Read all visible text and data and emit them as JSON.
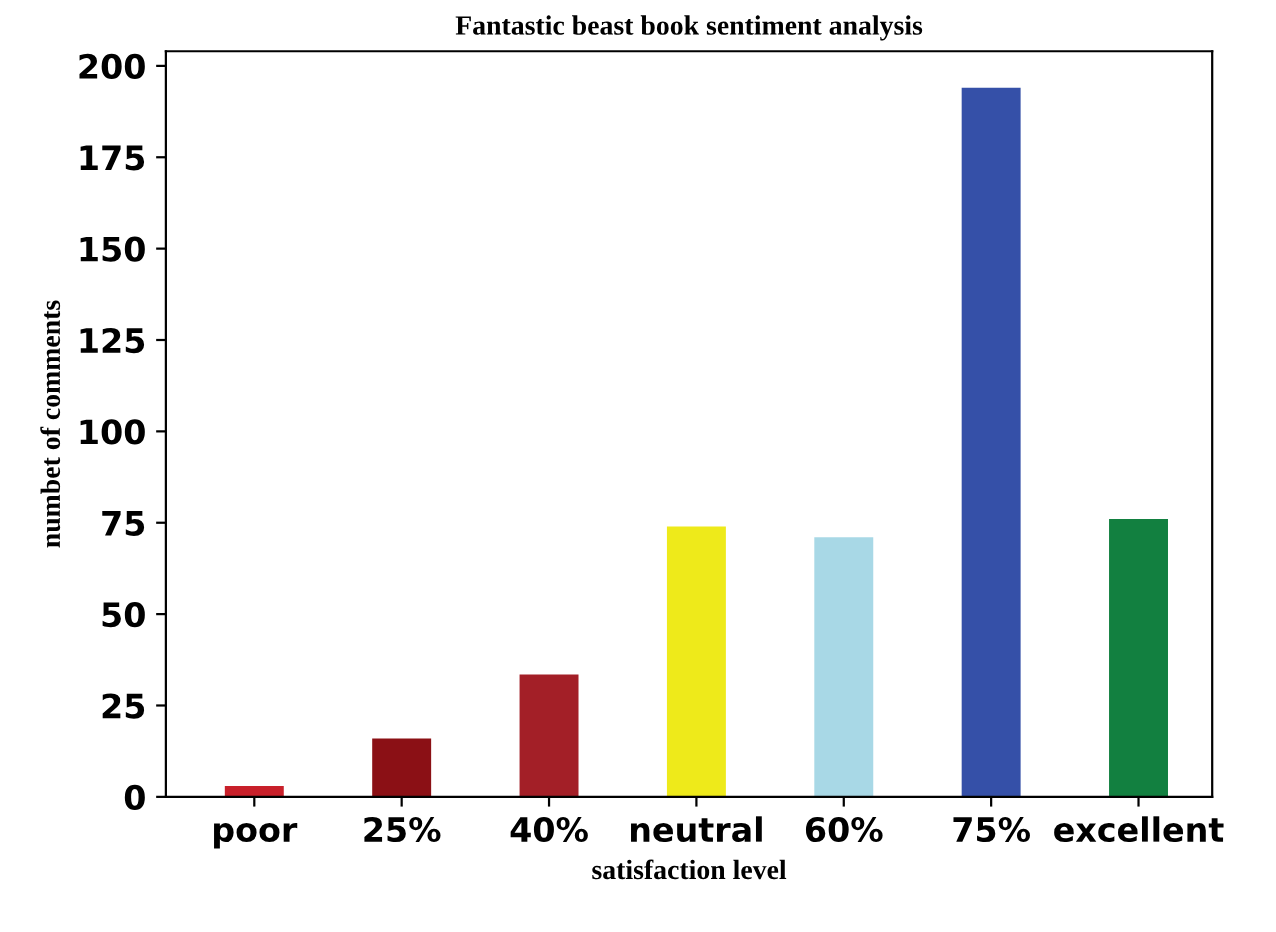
{
  "chart_data": {
    "type": "bar",
    "title": "Fantastic beast book sentiment analysis",
    "xlabel": "satisfaction level",
    "ylabel": "numbet of comments",
    "categories": [
      "poor",
      "25%",
      "40%",
      "neutral",
      "60%",
      "75%",
      "excellent"
    ],
    "values": [
      3,
      16,
      33.5,
      74,
      71,
      194,
      76
    ],
    "colors": [
      "#c8202a",
      "#8b1015",
      "#a31f27",
      "#eeea1a",
      "#a8d8e6",
      "#3550a8",
      "#128040"
    ],
    "ylim": [
      0,
      204
    ],
    "yticks": [
      0,
      25,
      50,
      75,
      100,
      125,
      150,
      175,
      200
    ],
    "grid": false
  }
}
